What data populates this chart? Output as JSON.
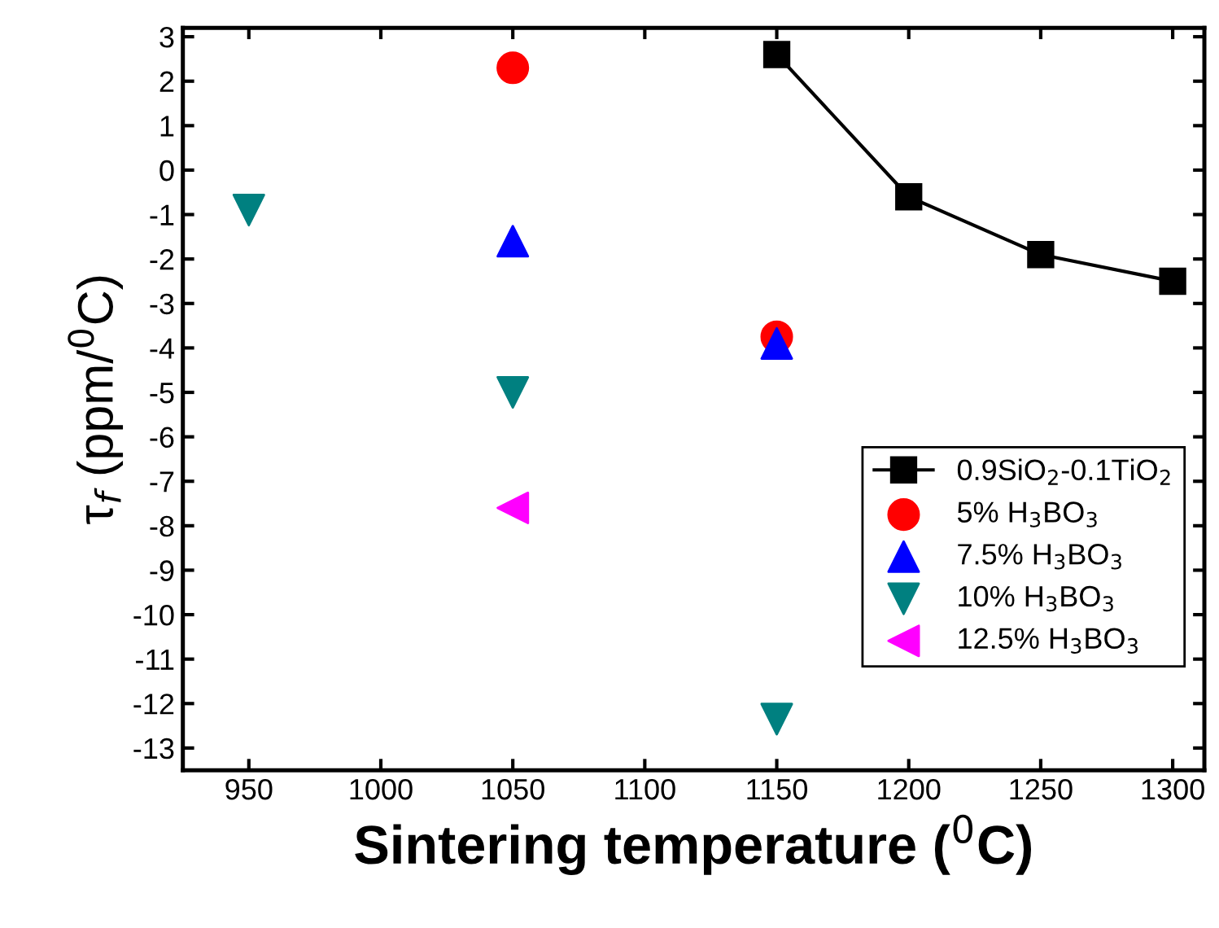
{
  "chart_data": {
    "type": "scatter",
    "xlabel": "Sintering temperature ($^{0}$C)",
    "ylabel": "τ$_{f}$ (ppm/$^{0}$C)",
    "xlim": [
      925,
      1312
    ],
    "ylim": [
      -13.5,
      3.2
    ],
    "xticks": [
      950,
      1000,
      1050,
      1100,
      1150,
      1200,
      1250,
      1300
    ],
    "yticks": [
      -13,
      -12,
      -11,
      -10,
      -9,
      -8,
      -7,
      -6,
      -5,
      -4,
      -3,
      -2,
      -1,
      0,
      1,
      2,
      3
    ],
    "grid": false,
    "legend": "bottom right",
    "series": [
      {
        "name": "0.9SiO$_{2}$-0.1TiO$_{2}$",
        "type": "line",
        "marker": "square",
        "color": "#000000",
        "x": [
          1150,
          1200,
          1250,
          1300
        ],
        "values": [
          2.6,
          -0.6,
          -1.9,
          -2.5
        ]
      },
      {
        "name": "5% H$_{3}$BO$_{3}$",
        "marker": "circle",
        "color": "#ff0000",
        "x": [
          1050,
          1150
        ],
        "values": [
          2.3,
          -3.75
        ]
      },
      {
        "name": "7.5% H$_{3}$BO$_{3}$",
        "marker": "triangle",
        "color": "#0000ff",
        "x": [
          1050,
          1150
        ],
        "values": [
          -1.6,
          -3.9
        ]
      },
      {
        "name": "10% H$_{3}$BO$_{3}$",
        "marker": "triangle_down",
        "color": "#008080",
        "x": [
          950,
          1050,
          1150
        ],
        "values": [
          -0.9,
          -5.0,
          -12.35
        ]
      },
      {
        "name": "12.5% H$_{3}$BO$_{3}$",
        "marker": "triangle_left",
        "color": "#ff00ff",
        "x": [
          1050
        ],
        "values": [
          -7.6
        ]
      }
    ]
  }
}
